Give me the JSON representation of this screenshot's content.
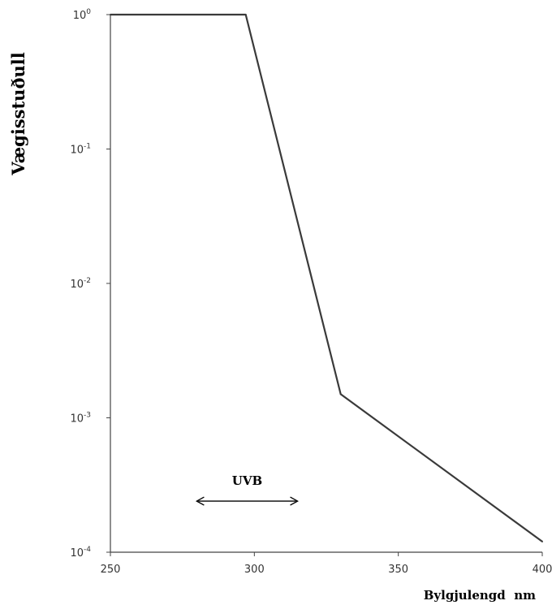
{
  "chart_data": {
    "type": "line",
    "xlabel": "Bylgjulengd  nm",
    "ylabel": "Vægisstuðull",
    "yscale": "log",
    "xlim": [
      250,
      400
    ],
    "ylim": [
      0.0001,
      1
    ],
    "grid": false,
    "x_ticks": [
      "250",
      "300",
      "350",
      "400"
    ],
    "y_ticks": [
      {
        "base": "10",
        "exp": "0",
        "value": 1
      },
      {
        "base": "10",
        "exp": "-1",
        "value": 0.1
      },
      {
        "base": "10",
        "exp": "-2",
        "value": 0.01
      },
      {
        "base": "10",
        "exp": "-3",
        "value": 0.001
      },
      {
        "base": "10",
        "exp": "-4",
        "value": 0.0001
      }
    ],
    "series": [
      {
        "x": [
          250,
          297,
          330,
          400
        ],
        "y": [
          1,
          1,
          0.0015,
          0.00012
        ],
        "color": "#3a3a3a"
      }
    ],
    "annotations": [
      {
        "text": "UVB",
        "x_start": 280,
        "x_end": 315,
        "y": 0.00024
      }
    ]
  }
}
